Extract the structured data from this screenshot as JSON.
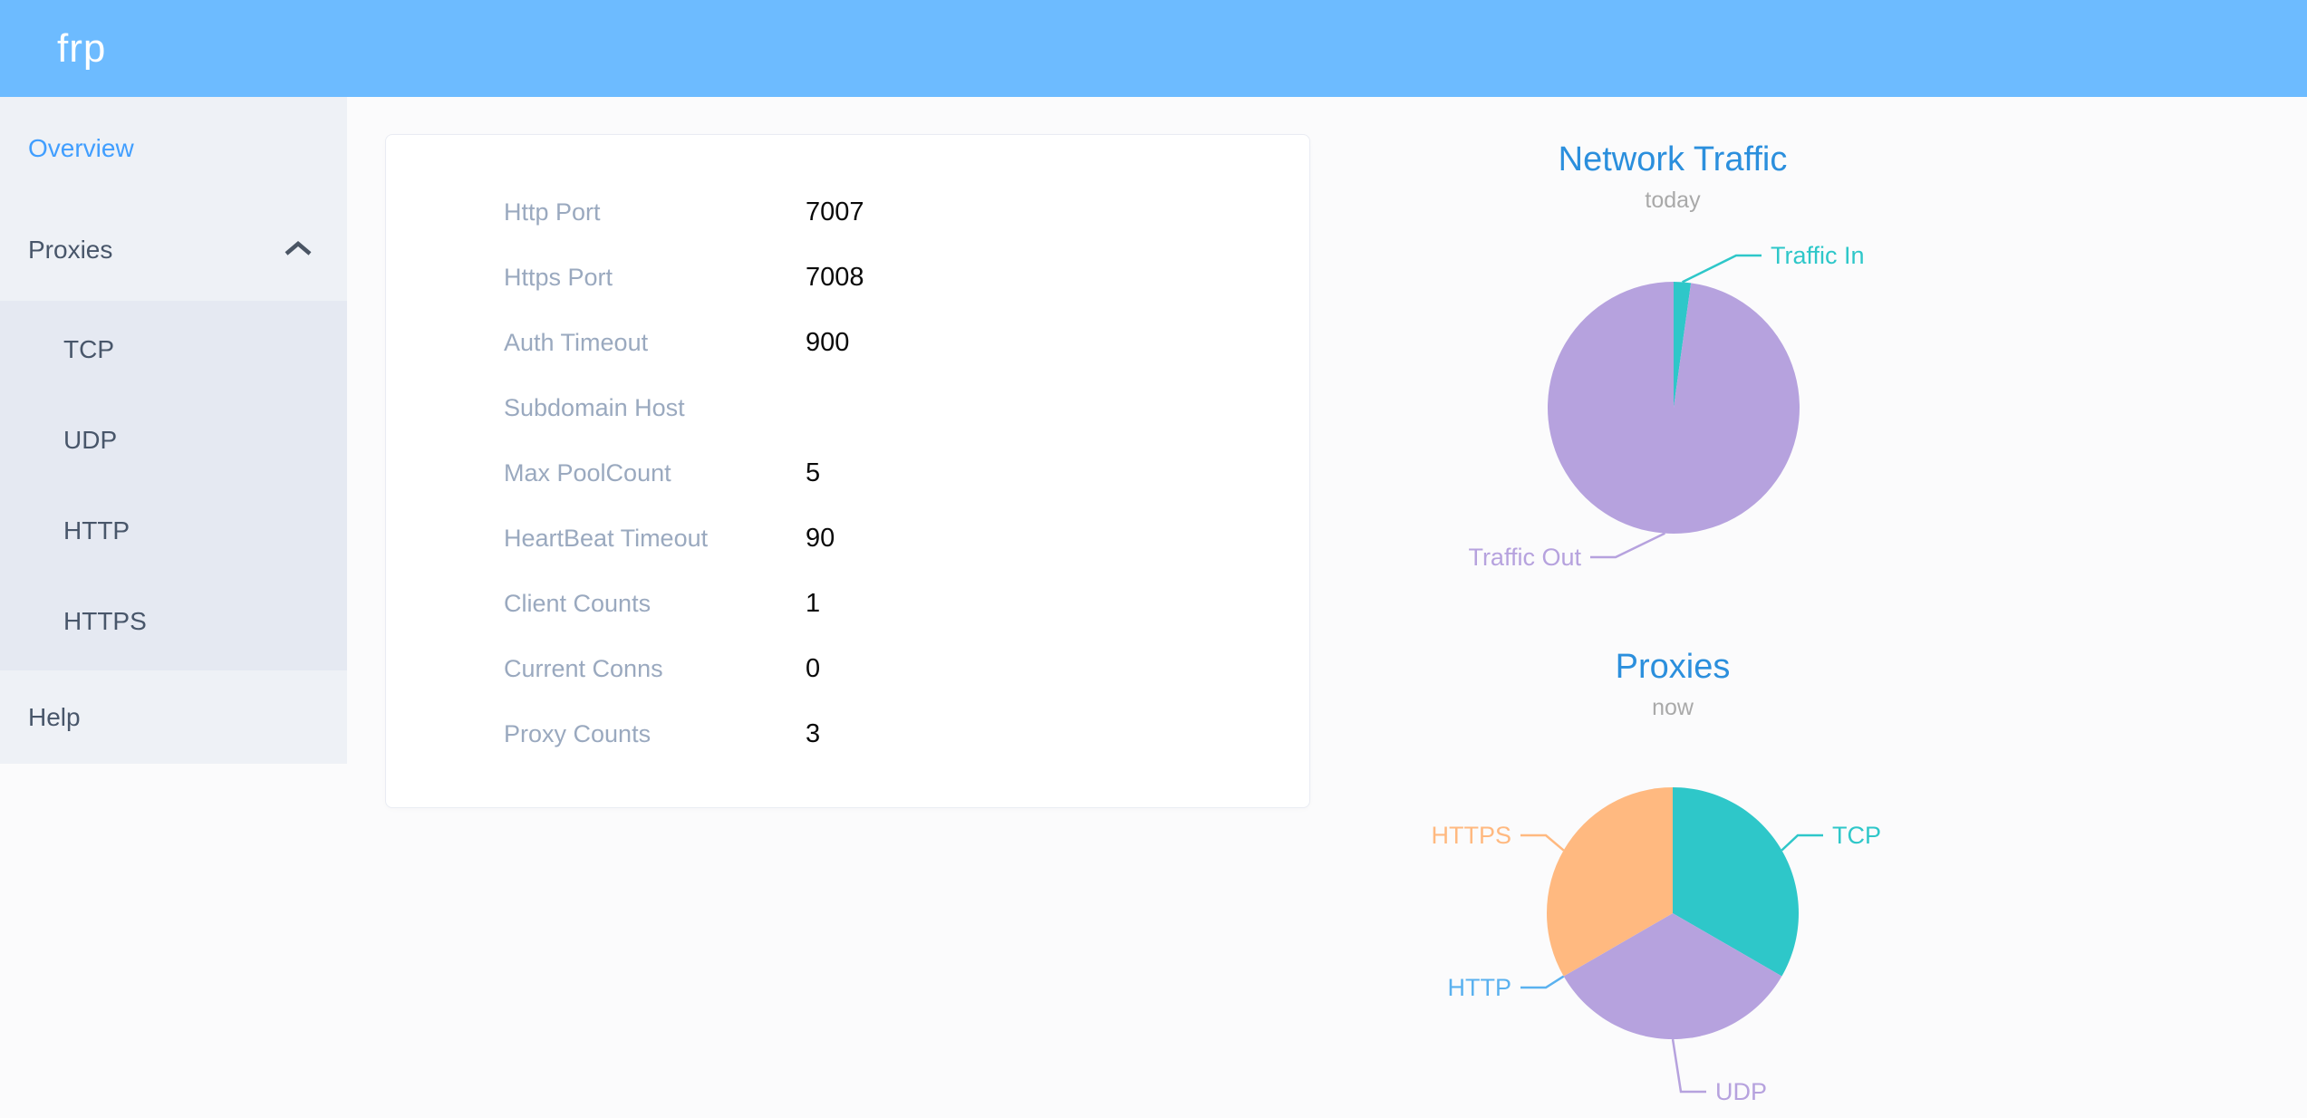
{
  "header": {
    "logo": "frp"
  },
  "sidebar": {
    "items": [
      {
        "label": "Overview",
        "active": true
      },
      {
        "label": "Proxies",
        "expanded": true,
        "children": [
          "TCP",
          "UDP",
          "HTTP",
          "HTTPS"
        ]
      },
      {
        "label": "Help"
      }
    ]
  },
  "server_info": {
    "rows": [
      {
        "label": "Http Port",
        "value": "7007"
      },
      {
        "label": "Https Port",
        "value": "7008"
      },
      {
        "label": "Auth Timeout",
        "value": "900"
      },
      {
        "label": "Subdomain Host",
        "value": ""
      },
      {
        "label": "Max PoolCount",
        "value": "5"
      },
      {
        "label": "HeartBeat Timeout",
        "value": "90"
      },
      {
        "label": "Client Counts",
        "value": "1"
      },
      {
        "label": "Current Conns",
        "value": "0"
      },
      {
        "label": "Proxy Counts",
        "value": "3"
      }
    ]
  },
  "chart_data": [
    {
      "type": "pie",
      "title": "Network Traffic",
      "subtitle": "today",
      "legend_position": "callout-labels",
      "direction": "clockwise-from-top",
      "start_angle_deg": 0,
      "slices": [
        {
          "label": "Traffic In",
          "percent": 2.2,
          "color": "#2ec7c9",
          "label_side": "right"
        },
        {
          "label": "Traffic Out",
          "percent": 97.8,
          "color": "#b6a2de",
          "label_side": "left"
        }
      ]
    },
    {
      "type": "pie",
      "title": "Proxies",
      "subtitle": "now",
      "legend_position": "callout-labels",
      "direction": "clockwise-from-top",
      "start_angle_deg": 0,
      "slices": [
        {
          "label": "TCP",
          "value": 1,
          "percent": 33.33,
          "color": "#2ec7c9",
          "label_side": "right"
        },
        {
          "label": "UDP",
          "value": 1,
          "percent": 33.33,
          "color": "#b6a2de",
          "label_side": "right"
        },
        {
          "label": "HTTP",
          "value": 0,
          "percent": 0,
          "color": "#5ab1ef",
          "label_side": "left"
        },
        {
          "label": "HTTPS",
          "value": 1,
          "percent": 33.34,
          "color": "#ffb980",
          "label_side": "left"
        }
      ]
    }
  ],
  "colors": {
    "header_blue": "#6dbbff",
    "active_link": "#409eff",
    "chart_title_blue": "#2b8fdd",
    "teal": "#2ec7c9",
    "purple": "#b6a2de",
    "blue": "#5ab1ef",
    "orange": "#ffb980"
  }
}
